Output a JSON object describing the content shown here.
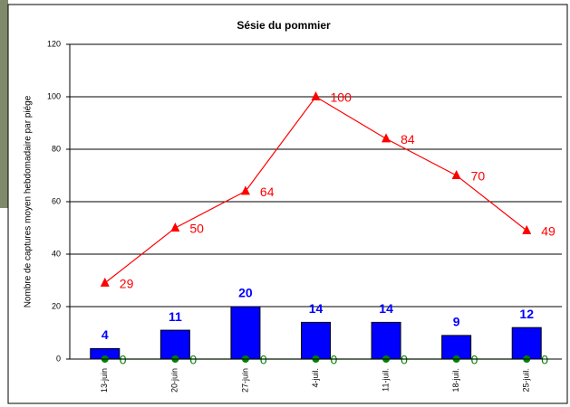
{
  "chart_data": {
    "type": "combo",
    "title": "Sésie du pommier",
    "y_label": "Nombre de captures moyen hebdomadaire par piége",
    "categories": [
      "13-juin",
      "20-juin",
      "27-juin",
      "4-juil.",
      "11-juil.",
      "18-juil.",
      "25-juil."
    ],
    "series": [
      {
        "type": "bar",
        "color": "#0000ff",
        "values": [
          4,
          11,
          20,
          14,
          14,
          9,
          12
        ]
      },
      {
        "type": "line",
        "color": "#ff0000",
        "marker": "triangle",
        "values": [
          29,
          50,
          64,
          100,
          84,
          70,
          49
        ]
      },
      {
        "type": "line",
        "color": "#008000",
        "marker": "circle",
        "values": [
          0,
          0,
          0,
          0,
          0,
          0,
          0
        ]
      }
    ],
    "ylim": [
      0,
      120
    ],
    "yticks": [
      0,
      20,
      40,
      60,
      80,
      100,
      120
    ],
    "grid": true
  }
}
